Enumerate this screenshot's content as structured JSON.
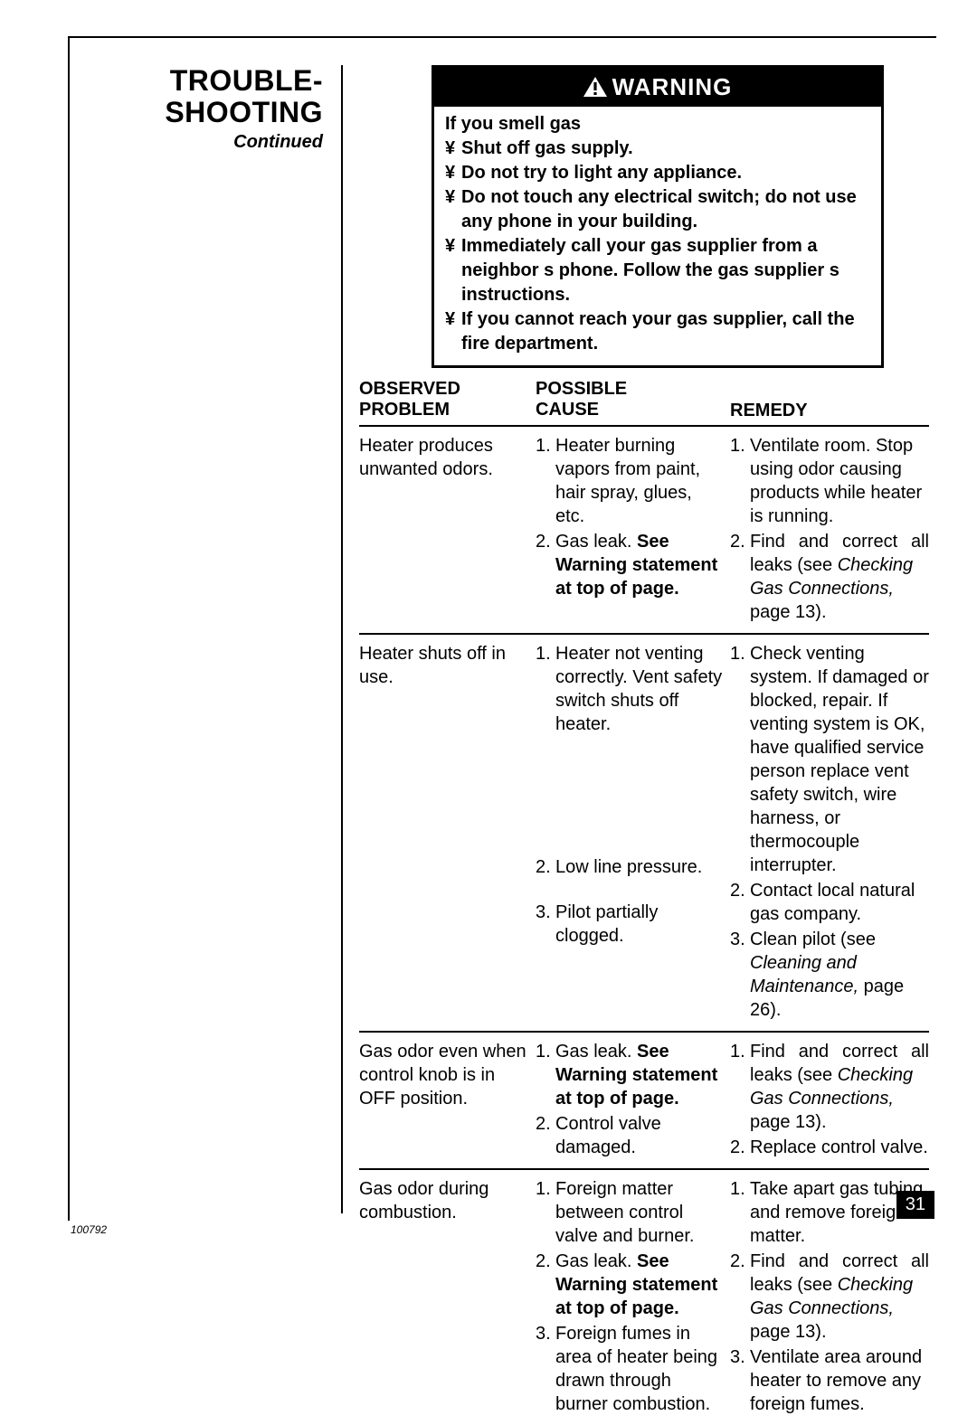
{
  "section": {
    "title_line1": "TROUBLE-",
    "title_line2": "SHOOTING",
    "continued": "Continued"
  },
  "warning": {
    "header": "WARNING",
    "intro": "If you smell gas",
    "bullet_char": "¥",
    "items": [
      "Shut off gas supply.",
      "Do not try to light any appliance.",
      "Do not touch any electrical switch; do not use any phone in your building.",
      "Immediately call your gas supplier from a neighbor s phone. Follow the gas supplier s instructions.",
      "If you cannot reach your gas supplier, call the fire department."
    ]
  },
  "table": {
    "headers": {
      "observed_l1": "OBSERVED",
      "observed_l2": "PROBLEM",
      "cause_l1": "POSSIBLE",
      "cause_l2": "CAUSE",
      "remedy": "REMEDY"
    },
    "rows": [
      {
        "problem": "Heater produces unwanted odors.",
        "causes": [
          {
            "n": "1.",
            "pre": "Heater burning vapors from paint, hair spray, glues, etc.",
            "bold": ""
          },
          {
            "n": "2.",
            "pre": "Gas leak. ",
            "bold": "See Warning statement at top of page."
          }
        ],
        "remedies": [
          {
            "n": "1.",
            "text": "Ventilate room. Stop using odor causing products while heater is running."
          },
          {
            "n": "2.",
            "text_justify_pre": "Find and correct all",
            "text_rest": " leaks (see ",
            "it": "Checking Gas Connections, ",
            "post": "page 13)."
          }
        ]
      },
      {
        "problem": "Heater shuts off in use.",
        "causes": [
          {
            "n": "1.",
            "pre": "Heater not venting correctly. Vent safety switch shuts off heater.",
            "bold": ""
          },
          {
            "n": "2.",
            "pre": "Low line pressure.",
            "bold": "",
            "spacer_before": 130
          },
          {
            "n": "3.",
            "pre": "Pilot partially clogged.",
            "bold": "",
            "spacer_before": 22
          }
        ],
        "remedies": [
          {
            "n": "1.",
            "text": "Check venting system. If damaged or blocked, repair. If venting system is OK, have qualified service person replace vent safety switch, wire harness, or thermocouple interrupter."
          },
          {
            "n": "2.",
            "text": "Contact local natural gas company."
          },
          {
            "n": "3.",
            "text": "Clean pilot (see ",
            "it": "Cleaning and Maintenance, ",
            "post": "page 26)."
          }
        ]
      },
      {
        "problem": "Gas odor even when control knob is in OFF position.",
        "causes": [
          {
            "n": "1.",
            "pre": "Gas leak. ",
            "bold": "See Warning statement at top of page."
          },
          {
            "n": "2.",
            "pre": "Control valve damaged.",
            "bold": ""
          }
        ],
        "remedies": [
          {
            "n": "1.",
            "text_justify_pre": "Find and correct all",
            "text_rest": " leaks (see ",
            "it": "Checking Gas Connections, ",
            "post": "page 13)."
          },
          {
            "n": "2.",
            "text": "Replace control valve."
          }
        ]
      },
      {
        "problem": "Gas odor during combustion.",
        "causes": [
          {
            "n": "1.",
            "pre": "Foreign matter between control valve and burner.",
            "bold": ""
          },
          {
            "n": "2.",
            "pre": "Gas leak. ",
            "bold": "See Warning statement at top of page."
          },
          {
            "n": "3.",
            "pre": "Foreign fumes in area of heater being drawn through burner combustion.",
            "bold": ""
          }
        ],
        "remedies": [
          {
            "n": "1.",
            "text": "Take apart gas tubing and remove foreign matter."
          },
          {
            "n": "2.",
            "text_justify_pre": "Find and correct all",
            "text_rest": " leaks (see ",
            "it": "Checking Gas Connections, ",
            "post": "page 13)."
          },
          {
            "n": "3.",
            "text": "Ventilate area around heater to remove any foreign fumes."
          }
        ]
      }
    ]
  },
  "footer": {
    "doc_id": "100792",
    "page_num": "31"
  },
  "colors": {
    "black": "#000000",
    "white": "#ffffff"
  }
}
